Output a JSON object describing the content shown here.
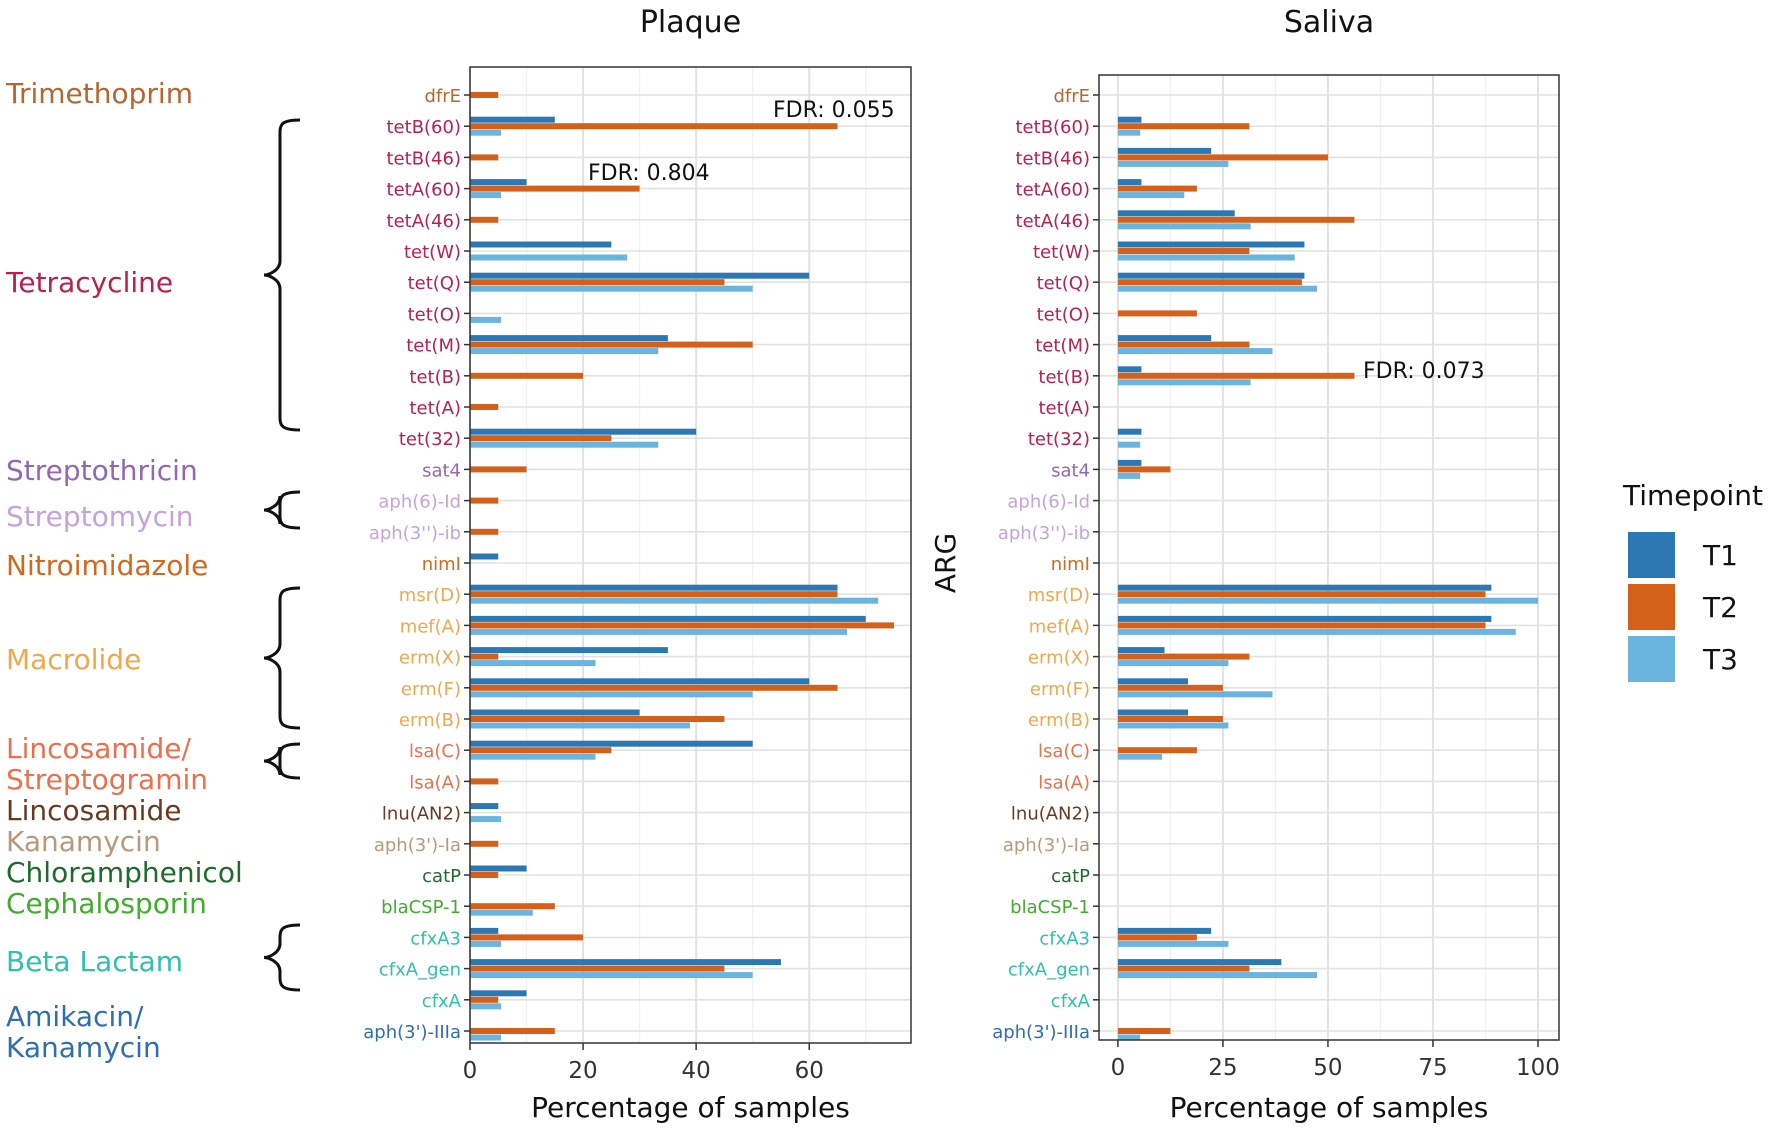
{
  "chart_data": [
    {
      "type": "bar",
      "orientation": "horizontal",
      "title": "Plaque",
      "xlabel": "Percentage of samples",
      "ylabel": "",
      "xlim": [
        0,
        78
      ],
      "xticks": [
        0,
        20,
        40,
        60
      ],
      "grid": true,
      "categories": [
        "dfrE",
        "tetB(60)",
        "tetB(46)",
        "tetA(60)",
        "tetA(46)",
        "tet(W)",
        "tet(Q)",
        "tet(O)",
        "tet(M)",
        "tet(B)",
        "tet(A)",
        "tet(32)",
        "sat4",
        "aph(6)-Id",
        "aph(3'')-ib",
        "nimI",
        "msr(D)",
        "mef(A)",
        "erm(X)",
        "erm(F)",
        "erm(B)",
        "lsa(C)",
        "lsa(A)",
        "lnu(AN2)",
        "aph(3')-Ia",
        "catP",
        "blaCSP-1",
        "cfxA3",
        "cfxA_gen",
        "cfxA",
        "aph(3')-IIIa"
      ],
      "series": [
        {
          "name": "T1",
          "values": [
            0,
            15,
            0,
            10,
            0,
            25,
            60,
            0,
            35,
            0,
            0,
            40,
            0,
            0,
            0,
            5,
            65,
            70,
            35,
            60,
            30,
            50,
            0,
            5,
            0,
            10,
            0,
            5,
            55,
            10,
            0
          ]
        },
        {
          "name": "T2",
          "values": [
            5,
            65,
            5,
            30,
            5,
            0,
            45,
            0,
            50,
            20,
            5,
            25,
            10,
            5,
            5,
            0,
            65,
            75,
            5,
            65,
            45,
            25,
            5,
            0,
            5,
            5,
            15,
            20,
            45,
            5,
            15
          ]
        },
        {
          "name": "T3",
          "values": [
            0,
            5.5,
            0,
            5.5,
            0,
            27.8,
            50,
            5.5,
            33.3,
            0,
            0,
            33.3,
            0,
            0,
            0,
            0,
            72.2,
            66.7,
            22.2,
            50,
            38.9,
            22.2,
            0,
            5.5,
            0,
            0,
            11.1,
            5.5,
            50,
            5.5,
            5.5
          ]
        }
      ],
      "annotations": [
        {
          "text": "FDR: 0.055",
          "category": "tetB(60)"
        },
        {
          "text": "FDR: 0.804",
          "category": "tetA(60)"
        }
      ]
    },
    {
      "type": "bar",
      "orientation": "horizontal",
      "title": "Saliva",
      "xlabel": "Percentage of samples",
      "ylabel": "ARG",
      "xlim": [
        -4.5,
        105
      ],
      "xticks": [
        0,
        25,
        50,
        75,
        100
      ],
      "grid": true,
      "categories": [
        "dfrE",
        "tetB(60)",
        "tetB(46)",
        "tetA(60)",
        "tetA(46)",
        "tet(W)",
        "tet(Q)",
        "tet(O)",
        "tet(M)",
        "tet(B)",
        "tet(A)",
        "tet(32)",
        "sat4",
        "aph(6)-Id",
        "aph(3'')-ib",
        "nimI",
        "msr(D)",
        "mef(A)",
        "erm(X)",
        "erm(F)",
        "erm(B)",
        "lsa(C)",
        "lsa(A)",
        "lnu(AN2)",
        "aph(3')-Ia",
        "catP",
        "blaCSP-1",
        "cfxA3",
        "cfxA_gen",
        "cfxA",
        "aph(3')-IIIa"
      ],
      "series": [
        {
          "name": "T1",
          "values": [
            0,
            5.6,
            22.2,
            5.6,
            27.8,
            44.4,
            44.4,
            0,
            22.2,
            5.6,
            0,
            5.6,
            5.6,
            0,
            0,
            0,
            88.9,
            88.9,
            11.1,
            16.7,
            16.7,
            0,
            0,
            0,
            0,
            0,
            0,
            22.2,
            38.9,
            0,
            0
          ]
        },
        {
          "name": "T2",
          "values": [
            0,
            31.3,
            50,
            18.8,
            56.3,
            31.3,
            43.8,
            18.8,
            31.3,
            56.3,
            0,
            0,
            12.5,
            0,
            0,
            0,
            87.5,
            87.5,
            31.3,
            25,
            25,
            18.8,
            0,
            0,
            0,
            0,
            0,
            18.8,
            31.3,
            0,
            12.5
          ]
        },
        {
          "name": "T3",
          "values": [
            0,
            5.3,
            26.3,
            15.8,
            31.6,
            42.1,
            47.4,
            0,
            36.8,
            31.6,
            0,
            5.3,
            5.3,
            0,
            0,
            0,
            100,
            94.7,
            26.3,
            36.8,
            26.3,
            10.5,
            0,
            0,
            0,
            0,
            0,
            26.3,
            47.4,
            0,
            5.3
          ]
        }
      ],
      "annotations": [
        {
          "text": "FDR: 0.073",
          "category": "tet(B)"
        }
      ]
    }
  ],
  "classes": [
    {
      "label": "Trimethoprim",
      "color": "#B8652E",
      "lines": [
        "Trimethoprim"
      ]
    },
    {
      "label": "Tetracycline",
      "color": "#BA1F4D",
      "lines": [
        "Tetracycline"
      ]
    },
    {
      "label": "Streptothricin",
      "color": "#9466B3",
      "lines": [
        "Streptothricin"
      ]
    },
    {
      "label": "Streptomycin",
      "color": "#C7A3DB",
      "lines": [
        "Streptomycin"
      ]
    },
    {
      "label": "Nitroimidazole",
      "color": "#D2691E",
      "lines": [
        "Nitroimidazole"
      ]
    },
    {
      "label": "Macrolide",
      "color": "#F2A74D",
      "lines": [
        "Macrolide"
      ]
    },
    {
      "label": "Lincosamide/ Streptogramin",
      "color": "#EF6F4B",
      "lines": [
        "Lincosamide/",
        "Streptogramin"
      ]
    },
    {
      "label": "Lincosamide",
      "color": "#6B3A1E",
      "lines": [
        "Lincosamide"
      ]
    },
    {
      "label": "Kanamycin",
      "color": "#B89A7A",
      "lines": [
        "Kanamycin"
      ]
    },
    {
      "label": "Chloramphenicol",
      "color": "#1E6B2A",
      "lines": [
        "Chloramphenicol"
      ]
    },
    {
      "label": "Cephalosporin",
      "color": "#3FAE2A",
      "lines": [
        "Cephalosporin"
      ]
    },
    {
      "label": "Beta Lactam",
      "color": "#2FC0B0",
      "lines": [
        "Beta Lactam"
      ]
    },
    {
      "label": "Amikacin/ Kanamycin",
      "color": "#2F6FB0",
      "lines": [
        "Amikacin/",
        "Kanamycin"
      ]
    }
  ],
  "gene_class": [
    "Trimethoprim",
    "Tetracycline",
    "Tetracycline",
    "Tetracycline",
    "Tetracycline",
    "Tetracycline",
    "Tetracycline",
    "Tetracycline",
    "Tetracycline",
    "Tetracycline",
    "Tetracycline",
    "Tetracycline",
    "Streptothricin",
    "Streptomycin",
    "Streptomycin",
    "Nitroimidazole",
    "Macrolide",
    "Macrolide",
    "Macrolide",
    "Macrolide",
    "Macrolide",
    "Lincosamide/ Streptogramin",
    "Lincosamide/ Streptogramin",
    "Lincosamide",
    "Kanamycin",
    "Chloramphenicol",
    "Cephalosporin",
    "Beta Lactam",
    "Beta Lactam",
    "Beta Lactam",
    "Amikacin/ Kanamycin"
  ],
  "legend": {
    "title": "Timepoint",
    "items": [
      {
        "label": "T1",
        "color": "#2C78B5"
      },
      {
        "label": "T2",
        "color": "#D4601A"
      },
      {
        "label": "T3",
        "color": "#6CB4E0"
      }
    ]
  }
}
